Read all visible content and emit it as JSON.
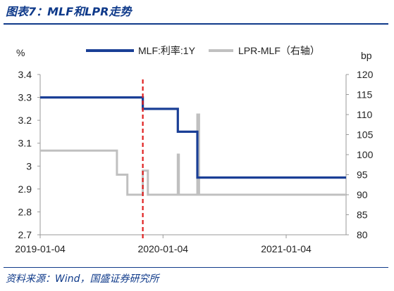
{
  "header": {
    "title": "图表7：MLF和LPR走势"
  },
  "footer": {
    "source": "资料来源：Wind，国盛证券研究所"
  },
  "chart_data": {
    "type": "line",
    "left_axis": {
      "unit_label": "%",
      "ylim": [
        2.7,
        3.4
      ],
      "ticks": [
        "3.4",
        "3.3",
        "3.2",
        "3.1",
        "3",
        "2.9",
        "2.8",
        "2.7"
      ]
    },
    "right_axis": {
      "unit_label": "bp",
      "ylim": [
        80,
        120
      ],
      "ticks": [
        "120",
        "115",
        "110",
        "105",
        "100",
        "95",
        "90",
        "85",
        "80"
      ]
    },
    "x_axis": {
      "xlim": [
        "2019-01-04",
        "2021-07-01"
      ],
      "ticks": [
        "2019-01-04",
        "2020-01-04",
        "2021-01-04"
      ]
    },
    "grid": false,
    "legend_position": "top",
    "series": [
      {
        "name": "MLF:利率:1Y",
        "axis": "left",
        "color": "#1a3f96",
        "step": true,
        "points": [
          [
            "2019-01-04",
            3.3
          ],
          [
            "2019-11-05",
            3.25
          ],
          [
            "2020-02-17",
            3.15
          ],
          [
            "2020-04-15",
            2.95
          ],
          [
            "2021-07-01",
            2.95
          ]
        ]
      },
      {
        "name": "LPR-MLF（右轴）",
        "axis": "right",
        "color": "#c0c0c0",
        "step": true,
        "points": [
          [
            "2019-01-04",
            101
          ],
          [
            "2019-08-20",
            95
          ],
          [
            "2019-09-20",
            90
          ],
          [
            "2019-11-05",
            96
          ],
          [
            "2019-11-20",
            90
          ],
          [
            "2020-02-17",
            100
          ],
          [
            "2020-02-20",
            90
          ],
          [
            "2020-04-15",
            110
          ],
          [
            "2020-04-20",
            90
          ],
          [
            "2021-07-01",
            90
          ]
        ]
      }
    ],
    "annotations": [
      {
        "type": "vertical-line",
        "x": "2019-11-05",
        "color": "#e02020",
        "style": "dashed"
      }
    ]
  }
}
